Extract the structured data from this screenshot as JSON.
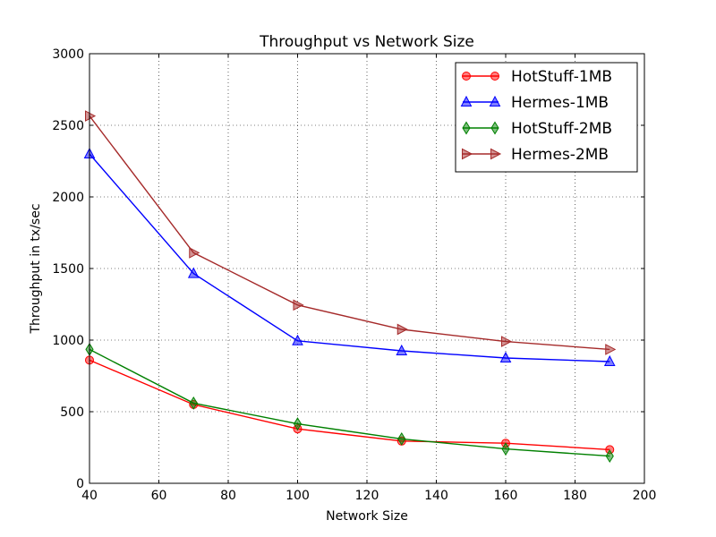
{
  "chart_data": {
    "type": "line",
    "title": "Throughput vs Network Size",
    "xlabel": "Network Size",
    "ylabel": "Throughput in tx/sec",
    "xlim": [
      40,
      200
    ],
    "ylim": [
      0,
      3000
    ],
    "xticks": [
      40,
      60,
      80,
      100,
      120,
      140,
      160,
      180,
      200
    ],
    "yticks": [
      0,
      500,
      1000,
      1500,
      2000,
      2500,
      3000
    ],
    "grid": true,
    "legend_position": "top-right",
    "x": [
      40,
      70,
      100,
      130,
      160,
      190
    ],
    "series": [
      {
        "name": "HotStuff-1MB",
        "color": "#ff0000",
        "marker": "circle",
        "values": [
          860,
          550,
          380,
          295,
          280,
          235
        ]
      },
      {
        "name": "Hermes-1MB",
        "color": "#0000ff",
        "marker": "triangle-up",
        "values": [
          2300,
          1465,
          995,
          925,
          875,
          850
        ]
      },
      {
        "name": "HotStuff-2MB",
        "color": "#008000",
        "marker": "thin-diamond",
        "values": [
          935,
          560,
          415,
          310,
          240,
          190
        ]
      },
      {
        "name": "Hermes-2MB",
        "color": "#a52a2a",
        "marker": "triangle-right",
        "values": [
          2565,
          1610,
          1245,
          1075,
          990,
          935
        ]
      }
    ]
  }
}
